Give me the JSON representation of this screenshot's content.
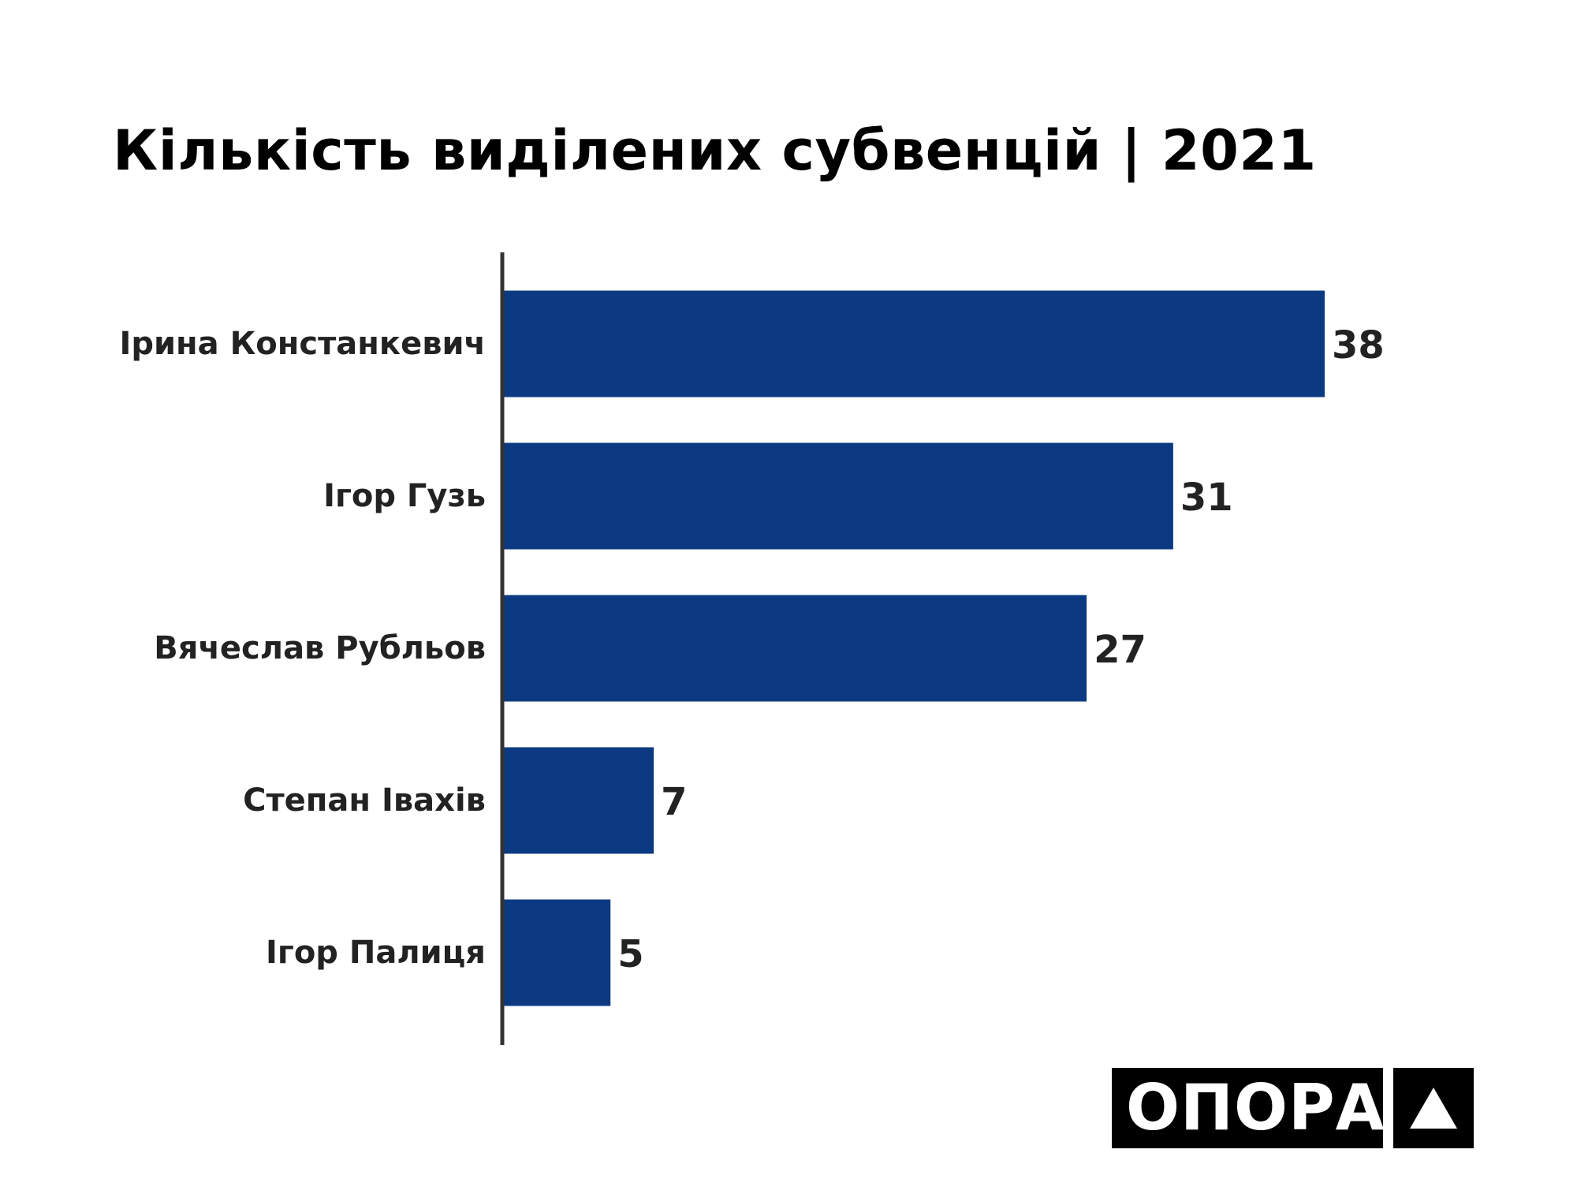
{
  "chart_data": {
    "type": "bar",
    "orientation": "horizontal",
    "title": "Кількість виділених субвенцій | 2021",
    "categories": [
      "Ірина Констанкевич",
      "Ігор Гузь",
      "Вячеслав Рубльов",
      "Степан Івахів",
      "Ігор Палиця"
    ],
    "values": [
      38,
      31,
      27,
      7,
      5
    ],
    "xlim": [
      0,
      38
    ],
    "grid": false,
    "data_labels": true,
    "bar_color": "#0B3A82"
  },
  "logo": {
    "text": "ОПОРА",
    "icon": "triangle-icon"
  },
  "colors": {
    "bar": "#0B3A82",
    "axis": "#333333",
    "text": "#222222",
    "logo_bg": "#000000",
    "logo_fg": "#ffffff"
  }
}
